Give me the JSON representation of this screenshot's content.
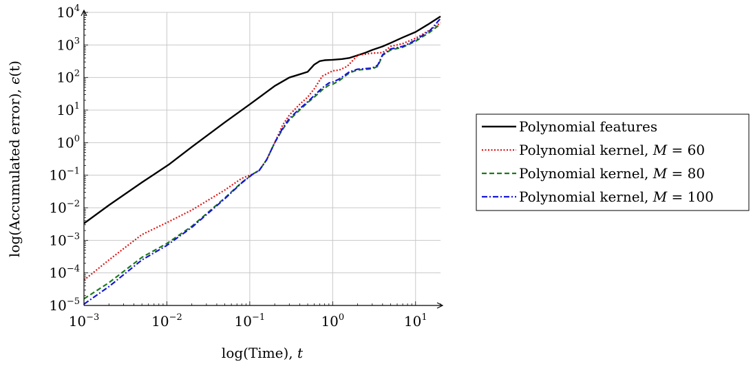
{
  "chart_data": {
    "type": "line",
    "xscale": "log",
    "yscale": "log",
    "xlim": [
      0.001,
      20
    ],
    "ylim": [
      1e-05,
      10000
    ],
    "grid": true,
    "xlabel": "log(Time), t",
    "ylabel": "log(Accumulated error), ϵ(t)",
    "xlabel_parts": {
      "text": "log(Time), ",
      "var": "t"
    },
    "ylabel_parts": {
      "text": "log(Accumulated error), ",
      "var": "ϵ",
      "suffix": "(t)"
    },
    "x_ticks": [
      {
        "value": 0.001,
        "base": "10",
        "exp": "−3"
      },
      {
        "value": 0.01,
        "base": "10",
        "exp": "−2"
      },
      {
        "value": 0.1,
        "base": "10",
        "exp": "−1"
      },
      {
        "value": 1,
        "base": "10",
        "exp": "0"
      },
      {
        "value": 10,
        "base": "10",
        "exp": "1"
      }
    ],
    "y_ticks": [
      {
        "value": 1e-05,
        "base": "10",
        "exp": "−5"
      },
      {
        "value": 0.0001,
        "base": "10",
        "exp": "−4"
      },
      {
        "value": 0.001,
        "base": "10",
        "exp": "−3"
      },
      {
        "value": 0.01,
        "base": "10",
        "exp": "−2"
      },
      {
        "value": 0.1,
        "base": "10",
        "exp": "−1"
      },
      {
        "value": 1,
        "base": "10",
        "exp": "0"
      },
      {
        "value": 10,
        "base": "10",
        "exp": "1"
      },
      {
        "value": 100,
        "base": "10",
        "exp": "2"
      },
      {
        "value": 1000,
        "base": "10",
        "exp": "3"
      },
      {
        "value": 10000,
        "base": "10",
        "exp": "4"
      }
    ],
    "legend_position": "outside-right",
    "series": [
      {
        "name": "Polynomial features",
        "label_text": "Polynomial features",
        "label_var": "",
        "label_value": "",
        "color": "#000000",
        "dash": "solid",
        "x": [
          0.001,
          0.002,
          0.005,
          0.0105,
          0.02,
          0.05,
          0.1,
          0.15,
          0.2,
          0.3,
          0.4,
          0.5,
          0.6,
          0.7,
          0.8,
          1.0,
          1.3,
          1.6,
          2.0,
          2.5,
          3.0,
          4.0,
          5.0,
          7.0,
          10.0,
          14.0,
          20.0
        ],
        "y": [
          0.0033,
          0.012,
          0.06,
          0.21,
          0.74,
          4.2,
          15,
          32,
          55,
          100,
          125,
          150,
          250,
          320,
          340,
          350,
          370,
          400,
          480,
          580,
          700,
          900,
          1150,
          1700,
          2500,
          4200,
          7500
        ]
      },
      {
        "name": "Polynomial kernel, M = 60",
        "label_text": "Polynomial kernel, ",
        "label_var": "M",
        "label_value": "60",
        "color": "#e01010",
        "dash": "dotted",
        "x": [
          0.001,
          0.002,
          0.005,
          0.01,
          0.02,
          0.05,
          0.08,
          0.11,
          0.13,
          0.16,
          0.2,
          0.25,
          0.3,
          0.4,
          0.5,
          0.6,
          0.75,
          1.0,
          1.2,
          1.5,
          2.0,
          3.0,
          4.0,
          5.0,
          7.0,
          10.0,
          15.0,
          20.0
        ],
        "y": [
          6e-05,
          0.00025,
          0.0015,
          0.0035,
          0.0085,
          0.035,
          0.08,
          0.11,
          0.14,
          0.3,
          1.0,
          3.5,
          7,
          15,
          25,
          45,
          110,
          160,
          170,
          220,
          480,
          560,
          580,
          900,
          1100,
          1600,
          2900,
          4800
        ]
      },
      {
        "name": "Polynomial kernel, M = 80",
        "label_text": "Polynomial kernel, ",
        "label_var": "M",
        "label_value": "80",
        "color": "#1a7a1a",
        "dash": "dashed",
        "x": [
          0.001,
          0.002,
          0.005,
          0.01,
          0.02,
          0.05,
          0.08,
          0.11,
          0.13,
          0.16,
          0.2,
          0.25,
          0.3,
          0.4,
          0.5,
          0.6,
          0.75,
          0.9,
          1.0,
          1.2,
          1.6,
          2.0,
          3.0,
          3.5,
          4.0,
          5.0,
          7.0,
          10.0,
          15.0,
          20.0
        ],
        "y": [
          1.6e-05,
          5e-05,
          0.0003,
          0.0008,
          0.0027,
          0.02,
          0.06,
          0.11,
          0.14,
          0.3,
          1.0,
          2.6,
          5,
          10,
          17,
          25,
          42,
          58,
          62,
          80,
          140,
          170,
          185,
          220,
          480,
          700,
          850,
          1300,
          2500,
          4400
        ]
      },
      {
        "name": "Polynomial kernel, M = 100",
        "label_text": "Polynomial kernel, ",
        "label_var": "M",
        "label_value": "100",
        "color": "#1414d8",
        "dash": "dashdot",
        "x": [
          0.001,
          0.002,
          0.005,
          0.01,
          0.02,
          0.05,
          0.08,
          0.11,
          0.13,
          0.16,
          0.2,
          0.25,
          0.3,
          0.4,
          0.5,
          0.6,
          0.75,
          0.9,
          1.0,
          1.2,
          1.6,
          2.0,
          3.0,
          3.5,
          4.0,
          5.0,
          7.0,
          10.0,
          15.0,
          20.0
        ],
        "y": [
          1.1e-05,
          3.8e-05,
          0.00025,
          0.0007,
          0.0025,
          0.019,
          0.058,
          0.11,
          0.14,
          0.3,
          1.0,
          2.8,
          5.5,
          11,
          18,
          28,
          48,
          68,
          72,
          90,
          150,
          180,
          195,
          240,
          500,
          750,
          900,
          1400,
          2800,
          6500
        ]
      }
    ]
  }
}
